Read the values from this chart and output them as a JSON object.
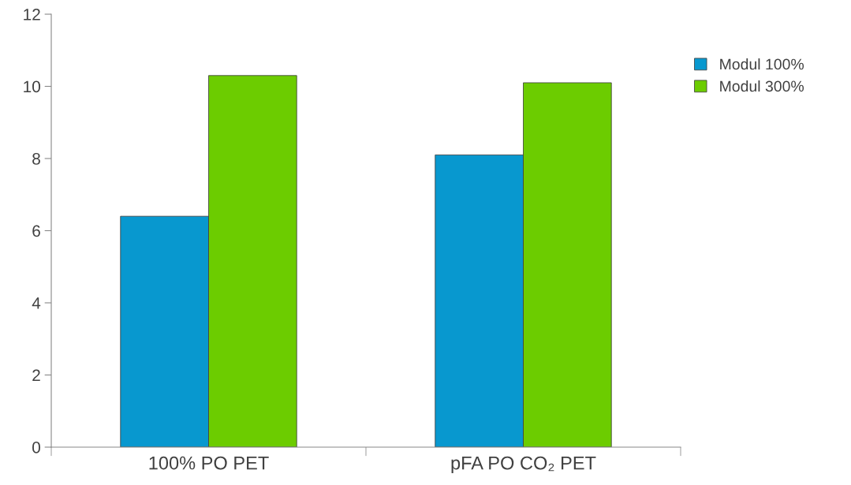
{
  "chart_data": {
    "type": "bar",
    "categories": [
      "100% PO PET",
      "pFA PO CO₂ PET"
    ],
    "series": [
      {
        "name": "Modul 100%",
        "color": "#0898cf",
        "values": [
          6.4,
          8.1
        ]
      },
      {
        "name": "Modul 300%",
        "color": "#6ccc00",
        "values": [
          10.3,
          10.1
        ]
      }
    ],
    "ylim": [
      0,
      12
    ],
    "yticks": [
      0,
      2,
      4,
      6,
      8,
      10,
      12
    ],
    "grid": false,
    "legend": "top right"
  }
}
